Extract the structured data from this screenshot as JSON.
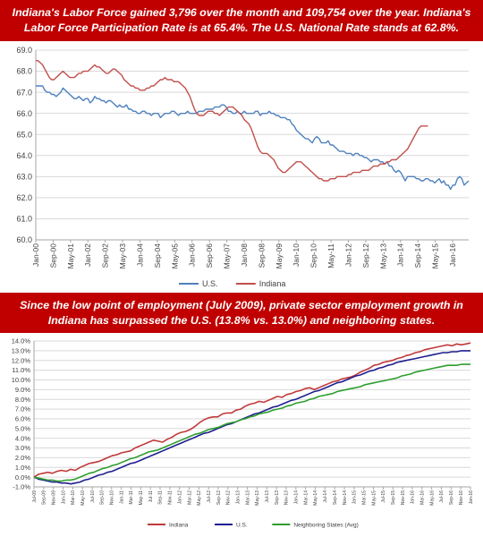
{
  "banner_top": "Indiana's Labor Force gained 3,796 over the month and 109,754 over the year. Indiana's Labor Force Participation Rate is at 65.4%. The U.S. National Rate stands at 62.8%.",
  "banner_bottom": "Since the low point of employment (July 2009), private sector employment growth in Indiana has surpassed the U.S. (13.8% vs. 13.0%) and neighboring states.",
  "chart_data": [
    {
      "type": "line",
      "title": "",
      "xlabel": "",
      "ylabel": "",
      "ylim": [
        60.0,
        69.0
      ],
      "yticks": [
        "60.0",
        "61.0",
        "62.0",
        "63.0",
        "64.0",
        "65.0",
        "66.0",
        "67.0",
        "68.0",
        "69.0"
      ],
      "xticks": [
        "Jan-00",
        "Sep-00",
        "May-01",
        "Jan-02",
        "Sep-02",
        "May-03",
        "Jan-04",
        "Sep-04",
        "May-05",
        "Jan-06",
        "Sep-06",
        "May-07",
        "Jan-08",
        "Sep-08",
        "May-09",
        "Jan-10",
        "Sep-10",
        "May-11",
        "Jan-12",
        "Sep-12",
        "May-13",
        "Jan-14",
        "Sep-14",
        "May-15",
        "Jan-16"
      ],
      "grid": "horizontal",
      "legend": "bottom",
      "colors": {
        "U.S.": "#4f81bd",
        "Indiana": "#c0504d"
      },
      "series": [
        {
          "name": "U.S.",
          "x_start": "Jan-2000",
          "step": "month",
          "values": [
            67.3,
            67.3,
            67.3,
            67.3,
            67.1,
            67.0,
            67.0,
            66.9,
            66.9,
            66.8,
            66.9,
            67.0,
            67.2,
            67.1,
            67.0,
            66.9,
            66.8,
            66.7,
            66.7,
            66.8,
            66.7,
            66.6,
            66.7,
            66.7,
            66.5,
            66.6,
            66.8,
            66.7,
            66.7,
            66.6,
            66.6,
            66.5,
            66.6,
            66.6,
            66.5,
            66.4,
            66.3,
            66.4,
            66.3,
            66.3,
            66.4,
            66.2,
            66.2,
            66.1,
            66.1,
            66.0,
            66.0,
            66.1,
            66.1,
            66.0,
            66.0,
            65.9,
            66.0,
            66.0,
            66.0,
            65.8,
            65.9,
            66.0,
            66.0,
            66.0,
            66.1,
            66.1,
            66.0,
            65.9,
            66.0,
            66.0,
            66.0,
            66.1,
            66.0,
            66.0,
            66.0,
            66.0,
            66.1,
            66.1,
            66.1,
            66.2,
            66.2,
            66.2,
            66.2,
            66.3,
            66.3,
            66.3,
            66.4,
            66.4,
            66.3,
            66.1,
            66.1,
            66.0,
            66.0,
            66.1,
            66.0,
            66.0,
            66.1,
            66.0,
            66.0,
            66.0,
            66.0,
            66.1,
            66.1,
            65.9,
            66.0,
            66.0,
            66.0,
            66.1,
            66.0,
            66.0,
            65.9,
            65.9,
            65.8,
            65.8,
            65.8,
            65.7,
            65.7,
            65.5,
            65.4,
            65.2,
            65.1,
            65.0,
            64.9,
            64.8,
            64.8,
            64.7,
            64.6,
            64.8,
            64.9,
            64.8,
            64.6,
            64.6,
            64.6,
            64.7,
            64.5,
            64.5,
            64.4,
            64.3,
            64.2,
            64.2,
            64.2,
            64.1,
            64.1,
            64.1,
            64.0,
            64.1,
            64.1,
            64.0,
            64.0,
            63.9,
            63.9,
            63.8,
            63.7,
            63.8,
            63.8,
            63.8,
            63.7,
            63.7,
            63.6,
            63.7,
            63.5,
            63.5,
            63.3,
            63.2,
            63.3,
            63.2,
            63.0,
            62.8,
            63.0,
            63.0,
            63.0,
            63.0,
            62.9,
            62.9,
            62.8,
            62.8,
            62.9,
            62.9,
            62.8,
            62.8,
            62.7,
            62.8,
            62.9,
            62.7,
            62.8,
            62.6,
            62.6,
            62.4,
            62.6,
            62.6,
            62.9,
            63.0,
            62.9,
            62.6,
            62.7,
            62.8
          ]
        },
        {
          "name": "Indiana",
          "x_start": "Jan-2000",
          "step": "month",
          "values": [
            68.5,
            68.5,
            68.4,
            68.3,
            68.1,
            67.9,
            67.7,
            67.6,
            67.6,
            67.7,
            67.8,
            67.9,
            68.0,
            67.9,
            67.8,
            67.7,
            67.7,
            67.7,
            67.8,
            67.9,
            67.9,
            68.0,
            68.0,
            68.0,
            68.1,
            68.2,
            68.3,
            68.2,
            68.2,
            68.1,
            68.0,
            67.9,
            67.9,
            68.0,
            68.1,
            68.1,
            68.0,
            67.9,
            67.8,
            67.6,
            67.5,
            67.4,
            67.3,
            67.3,
            67.2,
            67.2,
            67.1,
            67.1,
            67.1,
            67.2,
            67.2,
            67.3,
            67.3,
            67.4,
            67.5,
            67.6,
            67.6,
            67.7,
            67.6,
            67.6,
            67.6,
            67.5,
            67.5,
            67.5,
            67.4,
            67.3,
            67.2,
            67.0,
            66.8,
            66.5,
            66.2,
            66.0,
            65.9,
            65.9,
            65.9,
            66.0,
            66.1,
            66.1,
            66.1,
            66.0,
            66.0,
            65.9,
            66.0,
            66.1,
            66.2,
            66.3,
            66.3,
            66.3,
            66.2,
            66.1,
            66.0,
            65.9,
            65.7,
            65.6,
            65.5,
            65.3,
            65.0,
            64.7,
            64.4,
            64.2,
            64.1,
            64.1,
            64.1,
            64.0,
            63.9,
            63.8,
            63.6,
            63.4,
            63.3,
            63.2,
            63.2,
            63.3,
            63.4,
            63.5,
            63.6,
            63.7,
            63.7,
            63.7,
            63.6,
            63.5,
            63.4,
            63.3,
            63.2,
            63.1,
            63.0,
            62.9,
            62.9,
            62.8,
            62.8,
            62.8,
            62.9,
            62.9,
            62.9,
            63.0,
            63.0,
            63.0,
            63.0,
            63.0,
            63.1,
            63.1,
            63.2,
            63.2,
            63.2,
            63.2,
            63.3,
            63.3,
            63.3,
            63.3,
            63.4,
            63.5,
            63.5,
            63.5,
            63.6,
            63.6,
            63.6,
            63.7,
            63.7,
            63.8,
            63.8,
            63.8,
            63.9,
            64.0,
            64.1,
            64.2,
            64.3,
            64.5,
            64.7,
            64.9,
            65.1,
            65.3,
            65.4,
            65.4,
            65.4,
            65.4
          ]
        }
      ]
    },
    {
      "type": "line",
      "title": "",
      "xlabel": "",
      "ylabel": "",
      "ylim": [
        -1.0,
        14.0
      ],
      "yticks": [
        "-1.0%",
        "0.0%",
        "1.0%",
        "2.0%",
        "3.0%",
        "4.0%",
        "5.0%",
        "6.0%",
        "7.0%",
        "8.0%",
        "9.0%",
        "10.0%",
        "11.0%",
        "12.0%",
        "13.0%",
        "14.0%"
      ],
      "xticks": [
        "Jul-09",
        "Sep-09",
        "Nov-09",
        "Jan-10",
        "Mar-10",
        "May-10",
        "Jul-10",
        "Sep-10",
        "Nov-10",
        "Jan-11",
        "Mar-11",
        "May-11",
        "Jul-11",
        "Sep-11",
        "Nov-11",
        "Jan-12",
        "Mar-12",
        "May-12",
        "Jul-12",
        "Sep-12",
        "Nov-12",
        "Jan-13",
        "Mar-13",
        "May-13",
        "Jul-13",
        "Sep-13",
        "Nov-13",
        "Jan-14",
        "Mar-14",
        "May-14",
        "Jul-14",
        "Sep-14",
        "Nov-14",
        "Jan-15",
        "Mar-15",
        "May-15",
        "Jul-15",
        "Sep-15",
        "Nov-15",
        "Jan-16",
        "Mar-16",
        "May-16",
        "Jul-16",
        "Sep-16",
        "Nov-16",
        "Jan-16"
      ],
      "grid": "horizontal",
      "legend": "bottom",
      "colors": {
        "Indiana": "#c0393b",
        "U.S.": "#1f1f8f",
        "Neighboring States (Avg)": "#2e9e2e"
      },
      "series": [
        {
          "name": "Indiana",
          "values": [
            0.0,
            0.3,
            0.4,
            0.5,
            0.4,
            0.6,
            0.7,
            0.6,
            0.8,
            0.7,
            1.0,
            1.2,
            1.4,
            1.5,
            1.6,
            1.8,
            2.0,
            2.2,
            2.3,
            2.5,
            2.6,
            2.7,
            3.0,
            3.2,
            3.4,
            3.6,
            3.8,
            3.7,
            3.6,
            3.9,
            4.1,
            4.4,
            4.6,
            4.7,
            4.9,
            5.2,
            5.6,
            5.9,
            6.1,
            6.2,
            6.2,
            6.5,
            6.6,
            6.6,
            6.9,
            7.0,
            7.3,
            7.5,
            7.6,
            7.8,
            7.7,
            7.9,
            8.1,
            8.3,
            8.2,
            8.5,
            8.6,
            8.8,
            8.9,
            9.1,
            9.2,
            9.0,
            9.2,
            9.4,
            9.6,
            9.8,
            9.9,
            10.1,
            10.2,
            10.3,
            10.5,
            10.8,
            11.0,
            11.2,
            11.5,
            11.6,
            11.8,
            11.9,
            12.0,
            12.2,
            12.3,
            12.5,
            12.6,
            12.8,
            12.9,
            13.1,
            13.2,
            13.3,
            13.4,
            13.5,
            13.6,
            13.5,
            13.7,
            13.6,
            13.7,
            13.8
          ]
        },
        {
          "name": "U.S.",
          "values": [
            0.0,
            -0.2,
            -0.3,
            -0.4,
            -0.5,
            -0.5,
            -0.6,
            -0.6,
            -0.7,
            -0.6,
            -0.5,
            -0.3,
            -0.2,
            0.0,
            0.2,
            0.3,
            0.5,
            0.6,
            0.8,
            1.0,
            1.2,
            1.4,
            1.5,
            1.7,
            1.9,
            2.1,
            2.3,
            2.5,
            2.7,
            2.9,
            3.1,
            3.3,
            3.5,
            3.7,
            3.9,
            4.1,
            4.3,
            4.5,
            4.6,
            4.8,
            5.0,
            5.2,
            5.4,
            5.5,
            5.7,
            5.9,
            6.1,
            6.3,
            6.5,
            6.6,
            6.8,
            7.0,
            7.2,
            7.3,
            7.5,
            7.7,
            7.9,
            8.0,
            8.2,
            8.4,
            8.6,
            8.8,
            8.9,
            9.1,
            9.3,
            9.5,
            9.7,
            9.8,
            10.0,
            10.2,
            10.4,
            10.5,
            10.7,
            10.9,
            11.0,
            11.2,
            11.3,
            11.5,
            11.6,
            11.8,
            11.9,
            12.0,
            12.1,
            12.2,
            12.3,
            12.4,
            12.5,
            12.6,
            12.7,
            12.8,
            12.8,
            12.9,
            12.9,
            13.0,
            13.0,
            13.0
          ]
        },
        {
          "name": "Neighboring States (Avg)",
          "values": [
            0.0,
            -0.1,
            -0.2,
            -0.3,
            -0.3,
            -0.4,
            -0.4,
            -0.3,
            -0.3,
            -0.2,
            0.0,
            0.2,
            0.4,
            0.5,
            0.7,
            0.9,
            1.0,
            1.2,
            1.3,
            1.5,
            1.7,
            1.9,
            2.0,
            2.2,
            2.4,
            2.6,
            2.7,
            2.8,
            3.0,
            3.2,
            3.4,
            3.6,
            3.8,
            4.0,
            4.2,
            4.4,
            4.5,
            4.7,
            4.9,
            5.0,
            5.1,
            5.3,
            5.5,
            5.6,
            5.7,
            5.9,
            6.0,
            6.2,
            6.3,
            6.5,
            6.6,
            6.7,
            6.9,
            7.0,
            7.1,
            7.3,
            7.4,
            7.6,
            7.7,
            7.8,
            8.0,
            8.1,
            8.3,
            8.4,
            8.5,
            8.6,
            8.8,
            8.9,
            9.0,
            9.1,
            9.2,
            9.3,
            9.5,
            9.6,
            9.7,
            9.8,
            9.9,
            10.0,
            10.1,
            10.2,
            10.4,
            10.5,
            10.6,
            10.8,
            10.9,
            11.0,
            11.1,
            11.2,
            11.3,
            11.4,
            11.5,
            11.5,
            11.5,
            11.6,
            11.6,
            11.6
          ]
        }
      ]
    }
  ]
}
